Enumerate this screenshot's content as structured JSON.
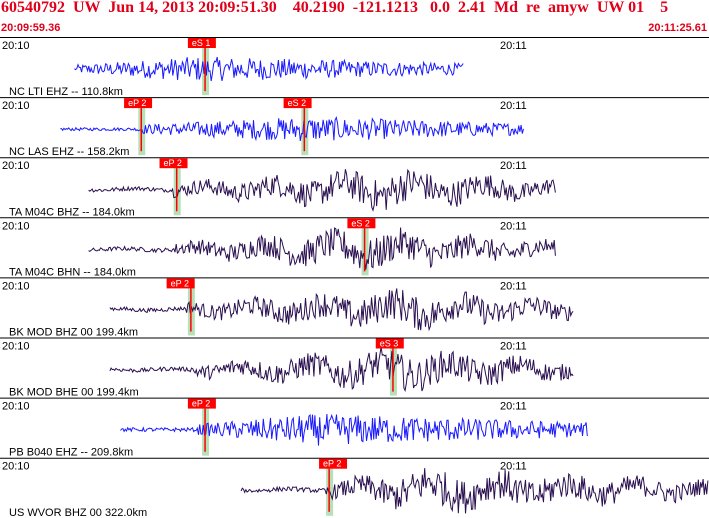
{
  "header": {
    "title": "60540792  UW  Jun 14, 2013 20:09:51.30    40.2190  -121.1213   0.0  2.41  Md  re  amyw  UW 01    5",
    "start_time": "20:09:59.36",
    "end_time": "20:11:25.61"
  },
  "tick_labels": {
    "left": "20:10",
    "right": "20:11"
  },
  "colors": {
    "blue_trace": "#1a1aff",
    "dark_trace": "#2a1050",
    "pick_flag": "#ff0000",
    "pick_marker": "#b8e0b8"
  },
  "traces": [
    {
      "station": "NC LTI EHZ -- 110.8km",
      "color": "blue",
      "start": 0.105,
      "end": 0.655,
      "onset": 0.11,
      "peak": 0.28,
      "amp": 0.55,
      "picks": [
        {
          "label": "eS 1",
          "pos": 0.265,
          "marker": 0.285
        }
      ]
    },
    {
      "station": "NC LAS EHZ -- 158.2km",
      "color": "blue",
      "start": 0.085,
      "end": 0.74,
      "onset": 0.195,
      "peak": 0.43,
      "amp": 0.55,
      "picks": [
        {
          "label": "eP 2",
          "pos": 0.175,
          "marker": 0.195
        },
        {
          "label": "eS 2",
          "pos": 0.4,
          "marker": 0.425
        }
      ]
    },
    {
      "station": "TA M04C BHZ -- 184.0km",
      "color": "dark",
      "start": 0.125,
      "end": 0.785,
      "onset": 0.245,
      "peak": 0.55,
      "amp": 0.75,
      "picks": [
        {
          "label": "eP 2",
          "pos": 0.225,
          "marker": 0.245
        }
      ]
    },
    {
      "station": "TA M04C BHN -- 184.0km",
      "color": "dark",
      "start": 0.125,
      "end": 0.785,
      "onset": 0.245,
      "peak": 0.52,
      "amp": 0.75,
      "picks": [
        {
          "label": "eS 2",
          "pos": 0.49,
          "marker": 0.51
        }
      ]
    },
    {
      "station": "BK MOD BHZ 00 199.4km",
      "color": "dark",
      "start": 0.155,
      "end": 0.81,
      "onset": 0.26,
      "peak": 0.57,
      "amp": 0.75,
      "picks": [
        {
          "label": "eP 2",
          "pos": 0.235,
          "marker": 0.265
        }
      ]
    },
    {
      "station": "BK MOD BHE 00 199.4km",
      "color": "dark",
      "start": 0.155,
      "end": 0.81,
      "onset": 0.27,
      "peak": 0.565,
      "amp": 0.75,
      "picks": [
        {
          "label": "eS 3",
          "pos": 0.53,
          "marker": 0.55
        }
      ]
    },
    {
      "station": "PB B040 EHZ -- 209.8km",
      "color": "blue",
      "start": 0.17,
      "end": 0.83,
      "onset": 0.28,
      "peak": 0.45,
      "amp": 0.7,
      "picks": [
        {
          "label": "eP 2",
          "pos": 0.265,
          "marker": 0.285
        }
      ]
    },
    {
      "station": "US WVOR BHZ 00 322.0km",
      "color": "dark",
      "start": 0.34,
      "end": 1.0,
      "onset": 0.46,
      "peak": 0.6,
      "amp": 0.8,
      "picks": [
        {
          "label": "eP 2",
          "pos": 0.45,
          "marker": 0.46
        }
      ]
    }
  ]
}
